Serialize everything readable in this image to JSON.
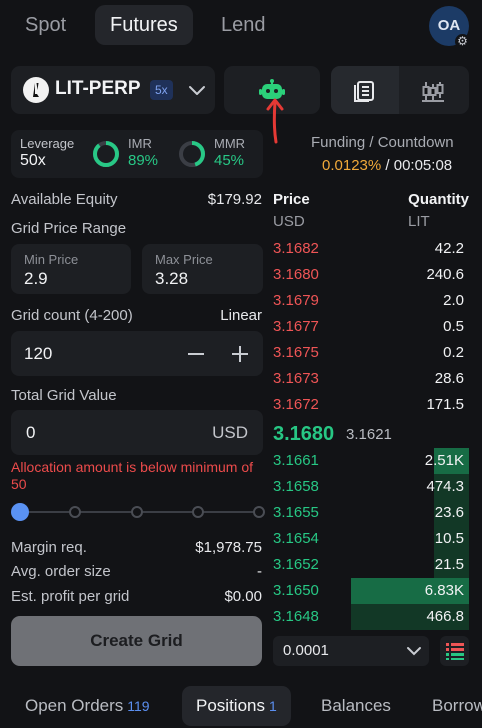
{
  "top_tabs": [
    "Spot",
    "Futures",
    "Lend"
  ],
  "active_top_tab": "Futures",
  "avatar": {
    "initials": "OA",
    "badge_icon": "gear-icon"
  },
  "market": {
    "symbol": "LIT-PERP",
    "leverage_badge": "5x",
    "logo_icon": "lighter-logo-icon"
  },
  "toolbar": {
    "bot_icon": "robot-icon",
    "book_icon": "orderbook-icon",
    "chart_icon": "candlestick-icon"
  },
  "colors": {
    "accent": "#5a92f3",
    "buy": "#27c784",
    "sell": "#ef5556",
    "warning": "#f0a93a",
    "bot_icon": "#2bd07a",
    "annotation_arrow": "#e53935"
  },
  "leverage_box": {
    "leverage_label": "Leverage",
    "leverage_value": "50x",
    "imr_label": "IMR",
    "imr_value": "89%",
    "imr_fraction": 0.89,
    "mmr_label": "MMR",
    "mmr_value": "45%",
    "mmr_fraction": 0.45
  },
  "funding": {
    "label": "Funding / Countdown",
    "rate": "0.0123%",
    "separator": "/",
    "countdown": "00:05:08"
  },
  "form": {
    "available_equity_label": "Available Equity",
    "available_equity_value": "$179.92",
    "grid_price_range_label": "Grid Price Range",
    "min_price_label": "Min Price",
    "min_price_value": "2.9",
    "max_price_label": "Max Price",
    "max_price_value": "3.28",
    "grid_count_label": "Grid count (4-200)",
    "grid_mode": "Linear",
    "grid_count_value": "120",
    "total_grid_value_label": "Total Grid Value",
    "total_grid_value": "0",
    "total_grid_unit": "USD",
    "error": "Allocation amount is below minimum of 50",
    "slider_fraction": 0,
    "margin_req_label": "Margin req.",
    "margin_req_value": "$1,978.75",
    "avg_order_size_label": "Avg. order size",
    "avg_order_size_value": "-",
    "est_profit_label": "Est. profit per grid",
    "est_profit_value": "$0.00",
    "create_button": "Create Grid"
  },
  "orderbook": {
    "price_header": "Price",
    "price_unit": "USD",
    "qty_header": "Quantity",
    "qty_unit": "LIT",
    "asks": [
      {
        "price": "3.1682",
        "qty": "42.2"
      },
      {
        "price": "3.1680",
        "qty": "240.6"
      },
      {
        "price": "3.1679",
        "qty": "2.0"
      },
      {
        "price": "3.1677",
        "qty": "0.5"
      },
      {
        "price": "3.1675",
        "qty": "0.2"
      },
      {
        "price": "3.1673",
        "qty": "28.6"
      },
      {
        "price": "3.1672",
        "qty": "171.5"
      }
    ],
    "mid_price": "3.1680",
    "mark_price": "3.1621",
    "bids": [
      {
        "price": "3.1661",
        "qty": "2.51K",
        "depth": 0.18,
        "strong": true
      },
      {
        "price": "3.1658",
        "qty": "474.3",
        "depth": 0.18,
        "strong": false
      },
      {
        "price": "3.1655",
        "qty": "23.6",
        "depth": 0.18,
        "strong": false
      },
      {
        "price": "3.1654",
        "qty": "10.5",
        "depth": 0.18,
        "strong": false
      },
      {
        "price": "3.1652",
        "qty": "21.5",
        "depth": 0.18,
        "strong": false
      },
      {
        "price": "3.1650",
        "qty": "6.83K",
        "depth": 0.6,
        "strong": true
      },
      {
        "price": "3.1648",
        "qty": "466.8",
        "depth": 0.6,
        "strong": false
      }
    ],
    "precision": "0.0001"
  },
  "bottom_tabs": [
    {
      "label": "Open Orders",
      "count": "119"
    },
    {
      "label": "Positions",
      "count": "1"
    },
    {
      "label": "Balances",
      "count": ""
    },
    {
      "label": "Borrow",
      "count": ""
    }
  ],
  "active_bottom_tab": "Positions"
}
